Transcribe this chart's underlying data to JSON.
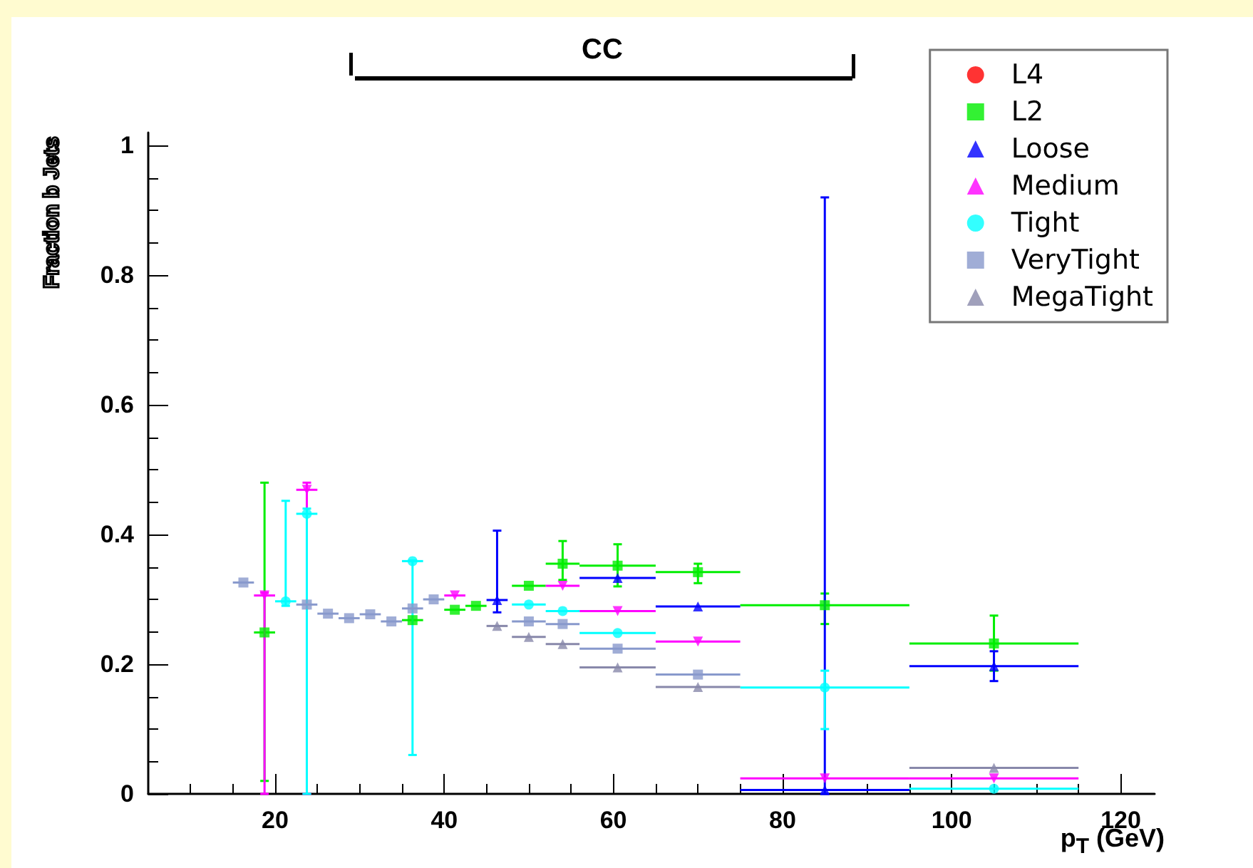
{
  "chart_data": {
    "type": "scatter",
    "xlabel": "p$_{T}$ (GeV)",
    "ylabel": "Fraction b Jets",
    "annotations": [
      "CC"
    ],
    "x": [
      16.25,
      18.75,
      21.25,
      23.75,
      26.25,
      28.75,
      31.25,
      33.75,
      36.25,
      38.75,
      41.25,
      43.75,
      46.25,
      50,
      54,
      60.5,
      70,
      85,
      105
    ],
    "xlim": [
      5,
      124
    ],
    "xticks": [
      20,
      40,
      60,
      80,
      100,
      120
    ],
    "ylim": [
      0,
      1.02
    ],
    "yticks": [
      0,
      0.2,
      0.4,
      0.6,
      0.8,
      1
    ],
    "grid": false,
    "legend": "top right",
    "series": [
      {
        "name": "L4",
        "color": "#ff0000",
        "marker": "circle",
        "values": [
          null,
          null,
          null,
          null,
          null,
          null,
          null,
          null,
          null,
          null,
          null,
          null,
          null,
          null,
          null,
          null,
          null,
          null,
          null
        ]
      },
      {
        "name": "L2",
        "color": "#00ee00",
        "marker": "square",
        "values": [
          null,
          0.249,
          null,
          null,
          null,
          null,
          null,
          null,
          0.268,
          null,
          0.284,
          0.29,
          null,
          0.321,
          0.355,
          0.352,
          0.342,
          0.291,
          0.232
        ],
        "xerrors": [
          null,
          1.25,
          null,
          null,
          null,
          null,
          null,
          null,
          1.25,
          null,
          1.25,
          1.25,
          null,
          2,
          2,
          4.5,
          5,
          10,
          10
        ],
        "errors": [
          null,
          [
            0.02,
            0.48
          ],
          null,
          null,
          null,
          null,
          null,
          null,
          null,
          null,
          null,
          null,
          null,
          null,
          [
            0.33,
            0.39
          ],
          [
            0.32,
            0.385
          ],
          [
            0.325,
            0.355
          ],
          [
            0.262,
            0.309
          ],
          [
            0.19,
            0.275
          ]
        ]
      },
      {
        "name": "Loose",
        "color": "#0000ff",
        "marker": "triangle",
        "values": [
          null,
          null,
          null,
          null,
          null,
          null,
          null,
          null,
          null,
          null,
          null,
          null,
          0.299,
          null,
          null,
          0.333,
          0.289,
          0.006,
          0.197
        ],
        "xerrors": [
          null,
          null,
          null,
          null,
          null,
          null,
          null,
          null,
          null,
          null,
          null,
          null,
          1.25,
          null,
          null,
          4.5,
          5,
          10,
          10
        ],
        "errors": [
          null,
          null,
          null,
          null,
          null,
          null,
          null,
          null,
          null,
          null,
          null,
          null,
          [
            0.28,
            0.406
          ],
          null,
          null,
          null,
          null,
          [
            0,
            0.92
          ],
          [
            0.174,
            0.22
          ]
        ]
      },
      {
        "name": "Medium",
        "color": "#ff00ff",
        "marker": "triangle-down",
        "values": [
          null,
          0.306,
          null,
          0.469,
          null,
          null,
          null,
          null,
          null,
          null,
          0.306,
          null,
          null,
          null,
          0.321,
          0.282,
          0.235,
          0.024,
          0.024
        ],
        "xerrors": [
          null,
          1.25,
          null,
          1.25,
          null,
          null,
          null,
          null,
          null,
          null,
          1.25,
          null,
          null,
          null,
          2,
          4.5,
          5,
          10,
          10
        ],
        "errors": [
          null,
          [
            0,
            0.31
          ],
          null,
          [
            0,
            0.48
          ],
          null,
          null,
          null,
          null,
          null,
          null,
          null,
          null,
          null,
          null,
          null,
          null,
          null,
          null,
          null
        ]
      },
      {
        "name": "Tight",
        "color": "#00ffff",
        "marker": "circle",
        "values": [
          null,
          null,
          0.297,
          0.432,
          null,
          null,
          null,
          null,
          0.359,
          null,
          null,
          null,
          null,
          0.292,
          0.282,
          0.248,
          null,
          0.164,
          0.008
        ],
        "xerrors": [
          null,
          null,
          1.25,
          1.25,
          null,
          null,
          null,
          null,
          1.25,
          null,
          null,
          null,
          null,
          2,
          2,
          4.5,
          null,
          10,
          10
        ],
        "errors": [
          null,
          null,
          [
            0.29,
            0.452
          ],
          [
            0,
            0.44
          ],
          null,
          null,
          null,
          null,
          [
            0.06,
            0.36
          ],
          null,
          null,
          null,
          null,
          null,
          null,
          null,
          null,
          [
            0.1,
            0.19
          ],
          null
        ]
      },
      {
        "name": "VeryTight",
        "color": "#8899cc",
        "marker": "square",
        "values": [
          0.326,
          null,
          null,
          0.292,
          0.278,
          0.271,
          0.277,
          0.266,
          0.286,
          0.3,
          null,
          null,
          null,
          0.266,
          0.262,
          0.224,
          0.184,
          null,
          null
        ],
        "xerrors": [
          1.25,
          null,
          null,
          1.25,
          1.25,
          1.25,
          1.25,
          1.25,
          1.25,
          1.25,
          null,
          null,
          null,
          2,
          2,
          4.5,
          5,
          null,
          null
        ]
      },
      {
        "name": "MegaTight",
        "color": "#8888aa",
        "marker": "triangle",
        "values": [
          null,
          null,
          null,
          null,
          null,
          null,
          null,
          null,
          null,
          null,
          null,
          null,
          0.259,
          0.242,
          0.231,
          0.195,
          0.165,
          null,
          0.04
        ],
        "xerrors": [
          null,
          null,
          null,
          null,
          null,
          null,
          null,
          null,
          null,
          null,
          null,
          null,
          1.25,
          2,
          2,
          4.5,
          5,
          null,
          10
        ]
      }
    ]
  }
}
